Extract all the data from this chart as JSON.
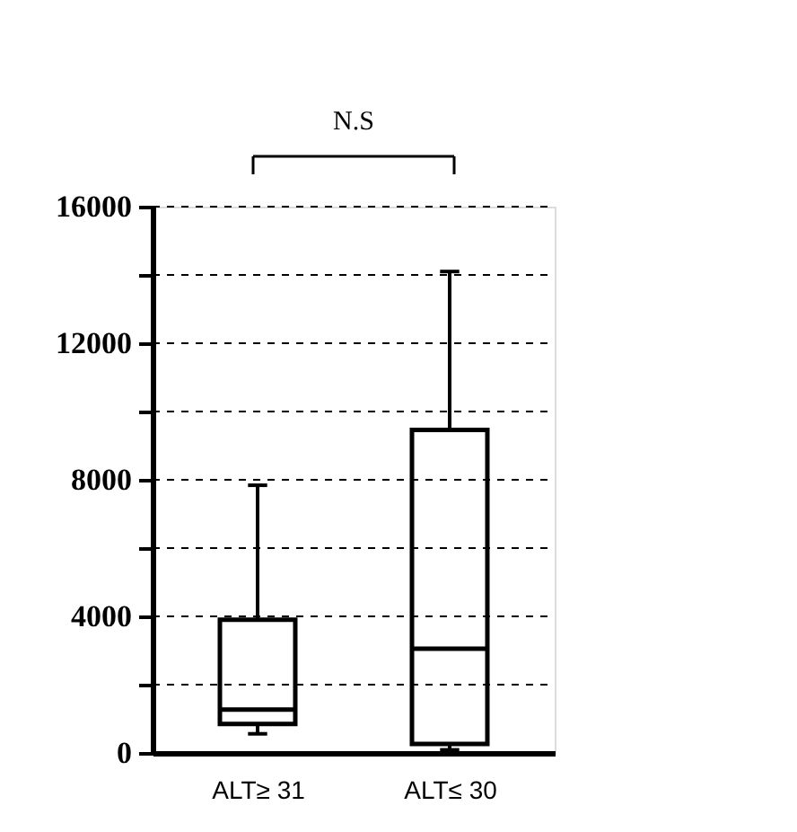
{
  "chart_data": {
    "type": "box",
    "categories": [
      "ALT≥ 31",
      "ALT≤ 30"
    ],
    "boxes": [
      {
        "low": 560,
        "q1": 850,
        "median": 1270,
        "q3": 3900,
        "high": 7840
      },
      {
        "low": 90,
        "q1": 260,
        "median": 3050,
        "q3": 9460,
        "high": 14100
      }
    ],
    "ylim": [
      0,
      16000
    ],
    "yticks": [
      0,
      {
        "value": 2000,
        "label": null
      },
      4000,
      {
        "value": 6000,
        "label": null
      },
      8000,
      {
        "value": 10000,
        "label": null
      },
      12000,
      {
        "value": 14000,
        "label": null
      },
      16000
    ],
    "grid": "y",
    "annotations": [
      "N.S"
    ]
  }
}
